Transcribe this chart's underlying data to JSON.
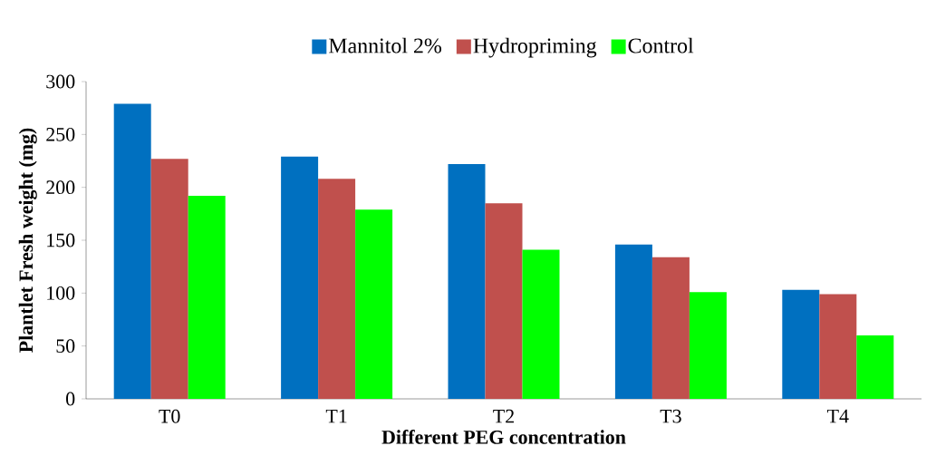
{
  "chart_data": {
    "type": "bar",
    "xlabel": "Different PEG concentration",
    "ylabel": "Plantlet Fresh weight (mg)",
    "categories": [
      "T0",
      "T1",
      "T2",
      "T3",
      "T4"
    ],
    "series": [
      {
        "name": "Mannitol 2%",
        "color": "#0070c0",
        "values": [
          279,
          229,
          222,
          146,
          103
        ]
      },
      {
        "name": "Hydropriming",
        "color": "#c0504d",
        "values": [
          227,
          208,
          185,
          134,
          99
        ]
      },
      {
        "name": "Control",
        "color": "#00ff00",
        "values": [
          192,
          179,
          141,
          101,
          60
        ]
      }
    ],
    "ylim": [
      0,
      300
    ],
    "yticks": [
      0,
      50,
      100,
      150,
      200,
      250,
      300
    ],
    "grid": false,
    "legend": "top"
  }
}
